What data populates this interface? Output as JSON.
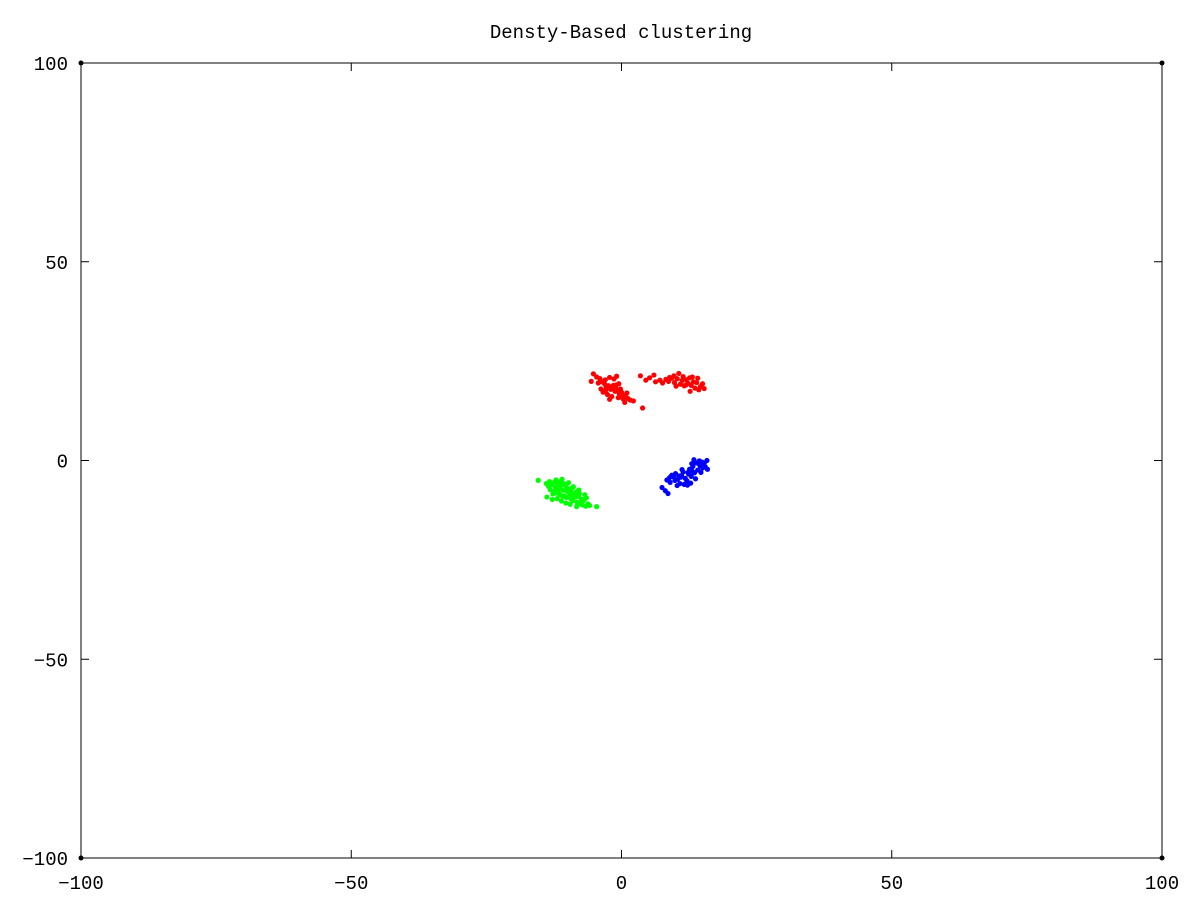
{
  "chart_data": {
    "type": "scatter",
    "title": "Densty-Based clustering",
    "xlabel": "",
    "ylabel": "",
    "xlim": [
      -100,
      100
    ],
    "ylim": [
      -100,
      100
    ],
    "xticks": [
      -100,
      -50,
      0,
      50,
      100
    ],
    "yticks": [
      -100,
      -50,
      0,
      50,
      100
    ],
    "x_tick_labels": [
      "−100",
      "−50",
      "0",
      "50",
      "100"
    ],
    "y_tick_labels": [
      "−100",
      "−50",
      "0",
      "50",
      "100"
    ],
    "grid": false,
    "legend": "none",
    "series": [
      {
        "color": "#ff0000",
        "points": [
          [
            -5.2,
            21.8
          ],
          [
            -4.6,
            21.0
          ],
          [
            -4.0,
            20.6
          ],
          [
            -3.6,
            19.8
          ],
          [
            -3.1,
            19.2
          ],
          [
            -2.8,
            18.5
          ],
          [
            -2.4,
            18.8
          ],
          [
            -2.0,
            17.9
          ],
          [
            -1.6,
            18.3
          ],
          [
            -1.2,
            17.4
          ],
          [
            -0.8,
            17.8
          ],
          [
            -0.4,
            16.8
          ],
          [
            0.0,
            17.2
          ],
          [
            0.4,
            16.4
          ],
          [
            0.8,
            16.0
          ],
          [
            1.2,
            15.6
          ],
          [
            -3.4,
            17.2
          ],
          [
            -2.6,
            16.6
          ],
          [
            -1.8,
            16.1
          ],
          [
            -0.6,
            15.8
          ],
          [
            0.6,
            14.6
          ],
          [
            1.6,
            15.2
          ],
          [
            2.2,
            15.0
          ],
          [
            -1.4,
            20.5
          ],
          [
            -0.9,
            21.2
          ],
          [
            -5.6,
            19.9
          ],
          [
            -4.3,
            19.5
          ],
          [
            -3.0,
            20.3
          ],
          [
            -2.2,
            20.9
          ],
          [
            -1.0,
            19.0
          ],
          [
            -0.2,
            18.0
          ],
          [
            0.3,
            15.5
          ],
          [
            1.0,
            17.0
          ],
          [
            3.9,
            13.2
          ],
          [
            -2.2,
            15.4
          ],
          [
            -1.5,
            18.9
          ],
          [
            -0.5,
            19.3
          ],
          [
            -3.8,
            18.0
          ],
          [
            0.1,
            16.0
          ],
          [
            -2.9,
            17.7
          ],
          [
            3.5,
            21.3
          ],
          [
            4.5,
            20.2
          ],
          [
            5.2,
            20.8
          ],
          [
            6.0,
            21.5
          ],
          [
            6.3,
            19.8
          ],
          [
            7.1,
            20.2
          ],
          [
            7.6,
            19.5
          ],
          [
            8.2,
            20.4
          ],
          [
            8.7,
            19.9
          ],
          [
            9.3,
            20.7
          ],
          [
            9.8,
            19.6
          ],
          [
            10.3,
            20.6
          ],
          [
            10.6,
            21.9
          ],
          [
            10.9,
            19.2
          ],
          [
            11.2,
            20.1
          ],
          [
            11.6,
            18.8
          ],
          [
            12.0,
            20.3
          ],
          [
            12.3,
            19.4
          ],
          [
            12.6,
            20.8
          ],
          [
            12.9,
            18.9
          ],
          [
            13.3,
            19.8
          ],
          [
            13.6,
            18.2
          ],
          [
            13.9,
            19.6
          ],
          [
            14.3,
            17.8
          ],
          [
            14.6,
            18.6
          ],
          [
            15.0,
            19.3
          ],
          [
            15.3,
            18.1
          ],
          [
            11.4,
            21.1
          ],
          [
            9.7,
            21.3
          ],
          [
            13.1,
            21.0
          ],
          [
            14.1,
            20.7
          ],
          [
            10.1,
            18.7
          ],
          [
            12.7,
            17.4
          ],
          [
            8.9,
            20.9
          ],
          [
            11.9,
            19.0
          ]
        ]
      },
      {
        "color": "#00ff00",
        "points": [
          [
            -15.4,
            -5.0
          ],
          [
            -13.9,
            -5.8
          ],
          [
            -13.5,
            -6.5
          ],
          [
            -13.2,
            -7.3
          ],
          [
            -12.9,
            -6.1
          ],
          [
            -12.6,
            -7.8
          ],
          [
            -12.4,
            -5.4
          ],
          [
            -12.2,
            -6.8
          ],
          [
            -12.0,
            -8.2
          ],
          [
            -11.8,
            -5.9
          ],
          [
            -11.6,
            -7.1
          ],
          [
            -11.4,
            -8.6
          ],
          [
            -11.2,
            -6.4
          ],
          [
            -11.0,
            -4.7
          ],
          [
            -10.8,
            -7.5
          ],
          [
            -10.6,
            -8.9
          ],
          [
            -10.4,
            -6.2
          ],
          [
            -10.2,
            -9.3
          ],
          [
            -10.0,
            -7.8
          ],
          [
            -9.8,
            -5.6
          ],
          [
            -9.6,
            -8.4
          ],
          [
            -9.4,
            -9.6
          ],
          [
            -9.2,
            -7.0
          ],
          [
            -9.0,
            -10.1
          ],
          [
            -8.8,
            -8.7
          ],
          [
            -8.6,
            -9.2
          ],
          [
            -8.4,
            -7.9
          ],
          [
            -8.2,
            -10.5
          ],
          [
            -8.0,
            -9.0
          ],
          [
            -7.8,
            -8.3
          ],
          [
            -7.6,
            -10.8
          ],
          [
            -7.4,
            -9.7
          ],
          [
            -7.2,
            -11.2
          ],
          [
            -7.0,
            -10.0
          ],
          [
            -6.8,
            -8.6
          ],
          [
            -6.6,
            -11.5
          ],
          [
            -6.2,
            -10.9
          ],
          [
            -5.9,
            -11.3
          ],
          [
            -4.6,
            -11.6
          ],
          [
            -13.8,
            -9.2
          ],
          [
            -12.8,
            -9.8
          ],
          [
            -11.9,
            -9.6
          ],
          [
            -11.1,
            -10.2
          ],
          [
            -10.3,
            -10.7
          ],
          [
            -9.5,
            -11.0
          ],
          [
            -12.1,
            -4.9
          ],
          [
            -11.3,
            -5.3
          ],
          [
            -10.7,
            -5.8
          ],
          [
            -12.7,
            -8.4
          ],
          [
            -8.9,
            -6.6
          ],
          [
            -7.9,
            -7.4
          ],
          [
            -9.7,
            -7.2
          ],
          [
            -10.9,
            -9.0
          ],
          [
            -11.7,
            -8.0
          ],
          [
            -8.3,
            -11.6
          ],
          [
            -6.5,
            -9.4
          ],
          [
            -13.3,
            -5.3
          ],
          [
            -10.1,
            -6.9
          ],
          [
            -9.3,
            -8.1
          ],
          [
            -12.3,
            -7.6
          ]
        ]
      },
      {
        "color": "#0000ff",
        "points": [
          [
            7.5,
            -6.8
          ],
          [
            8.1,
            -7.6
          ],
          [
            8.6,
            -8.3
          ],
          [
            8.4,
            -4.9
          ],
          [
            9.0,
            -5.5
          ],
          [
            9.6,
            -4.1
          ],
          [
            10.0,
            -3.3
          ],
          [
            10.4,
            -4.7
          ],
          [
            10.8,
            -5.8
          ],
          [
            11.1,
            -3.8
          ],
          [
            11.4,
            -2.9
          ],
          [
            11.8,
            -4.5
          ],
          [
            12.1,
            -5.1
          ],
          [
            12.4,
            -3.4
          ],
          [
            12.6,
            -2.2
          ],
          [
            12.9,
            -4.0
          ],
          [
            13.2,
            -1.5
          ],
          [
            13.5,
            -3.1
          ],
          [
            13.8,
            -0.6
          ],
          [
            14.1,
            -2.4
          ],
          [
            14.4,
            -1.0
          ],
          [
            14.7,
            -3.0
          ],
          [
            15.0,
            -1.9
          ],
          [
            15.3,
            -0.7
          ],
          [
            15.5,
            -1.6
          ],
          [
            15.8,
            0.0
          ],
          [
            15.9,
            -2.2
          ],
          [
            12.2,
            -6.2
          ],
          [
            11.6,
            -6.0
          ],
          [
            10.3,
            -6.3
          ],
          [
            9.3,
            -3.7
          ],
          [
            13.7,
            -4.6
          ],
          [
            14.4,
            -0.1
          ],
          [
            13.0,
            -0.8
          ],
          [
            12.8,
            -5.7
          ],
          [
            11.2,
            -2.3
          ],
          [
            9.9,
            -5.0
          ],
          [
            14.9,
            -0.4
          ],
          [
            13.4,
            0.2
          ],
          [
            11.0,
            -4.2
          ],
          [
            12.3,
            -3.0
          ],
          [
            13.1,
            -2.7
          ],
          [
            14.6,
            -1.4
          ],
          [
            10.6,
            -3.9
          ],
          [
            8.9,
            -4.3
          ]
        ]
      }
    ]
  }
}
